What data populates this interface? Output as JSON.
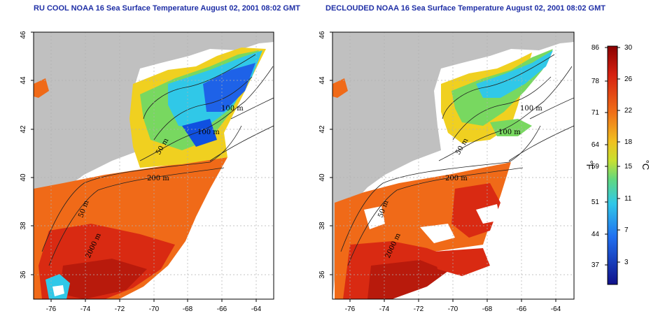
{
  "left_panel": {
    "title": "RU COOL NOAA 16 Sea Surface Temperature August 02, 2001 08:02 GMT",
    "contour_labels": [
      "100 m",
      "100 m",
      "50 m",
      "200 m",
      "50 m",
      "2000 m"
    ]
  },
  "right_panel": {
    "title": "DECLOUDED NOAA 16 Sea Surface Temperature August 02, 2001 08:02 GMT",
    "contour_labels": [
      "100 m",
      "100 m",
      "50 m",
      "200 m",
      "50 m",
      "2000 m"
    ]
  },
  "axes": {
    "lon_ticks": [
      "-76",
      "-74",
      "-72",
      "-70",
      "-68",
      "-66",
      "-64"
    ],
    "lat_ticks": [
      "36",
      "38",
      "40",
      "42",
      "44",
      "46"
    ]
  },
  "colorbar": {
    "fahrenheit_ticks": [
      "86",
      "78",
      "71",
      "64",
      "59",
      "51",
      "44",
      "37"
    ],
    "celsius_ticks": [
      "30",
      "26",
      "22",
      "18",
      "15",
      "11",
      "7",
      "3"
    ],
    "fahrenheit_unit": "°F",
    "celsius_unit": "°C"
  },
  "colors": {
    "title": "#1f2fa6",
    "land": "#c0c0c0",
    "cloud": "#ffffff",
    "warm": "#d92a12",
    "orange": "#f06a18",
    "yellow": "#f0d020",
    "green": "#78d860",
    "cyan": "#30c8e8",
    "blue": "#1050e0"
  }
}
